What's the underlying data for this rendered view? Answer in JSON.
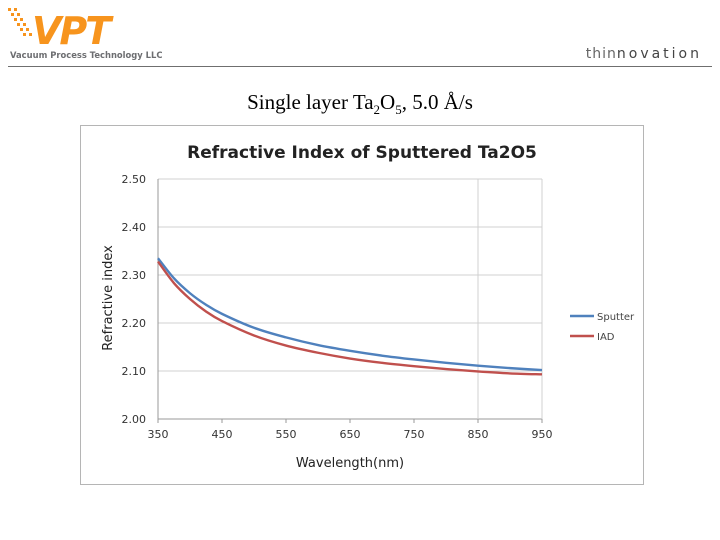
{
  "header": {
    "company_name": "Vacuum Process Technology LLC",
    "logo_letters": "VPT",
    "tagline_light": "thin",
    "tagline_bold": "novation"
  },
  "slide": {
    "title_main": "Single layer Ta",
    "title_sub1": "2",
    "title_mid": "O",
    "title_sub2": "5",
    "title_rest": ", 5.0 Å/s"
  },
  "colors": {
    "sputter": "#4f81bd",
    "iad": "#c0504d",
    "grid": "#d0d0d0",
    "logo_orange": "#f7941d",
    "logo_gray": "#6d6e71"
  },
  "chart_data": {
    "type": "line",
    "title": "Refractive Index of Sputtered Ta2O5",
    "xlabel": "Wavelength(nm)",
    "ylabel": "Refractive index",
    "xlim": [
      350,
      950
    ],
    "ylim": [
      2.0,
      2.5
    ],
    "xticks": [
      "350",
      "450",
      "550",
      "650",
      "750",
      "850",
      "950"
    ],
    "yticks": [
      "2.00",
      "2.10",
      "2.20",
      "2.30",
      "2.40",
      "2.50"
    ],
    "grid": "horizontal",
    "legend_position": "right",
    "x": [
      350,
      375,
      400,
      425,
      450,
      500,
      550,
      600,
      650,
      700,
      750,
      800,
      850,
      900,
      950
    ],
    "series": [
      {
        "name": "Sputter",
        "values": [
          2.335,
          2.293,
          2.262,
          2.238,
          2.219,
          2.19,
          2.17,
          2.154,
          2.142,
          2.132,
          2.124,
          2.117,
          2.111,
          2.106,
          2.102
        ]
      },
      {
        "name": "IAD",
        "values": [
          2.328,
          2.283,
          2.25,
          2.224,
          2.204,
          2.174,
          2.153,
          2.138,
          2.126,
          2.117,
          2.11,
          2.104,
          2.099,
          2.095,
          2.093
        ]
      }
    ]
  }
}
